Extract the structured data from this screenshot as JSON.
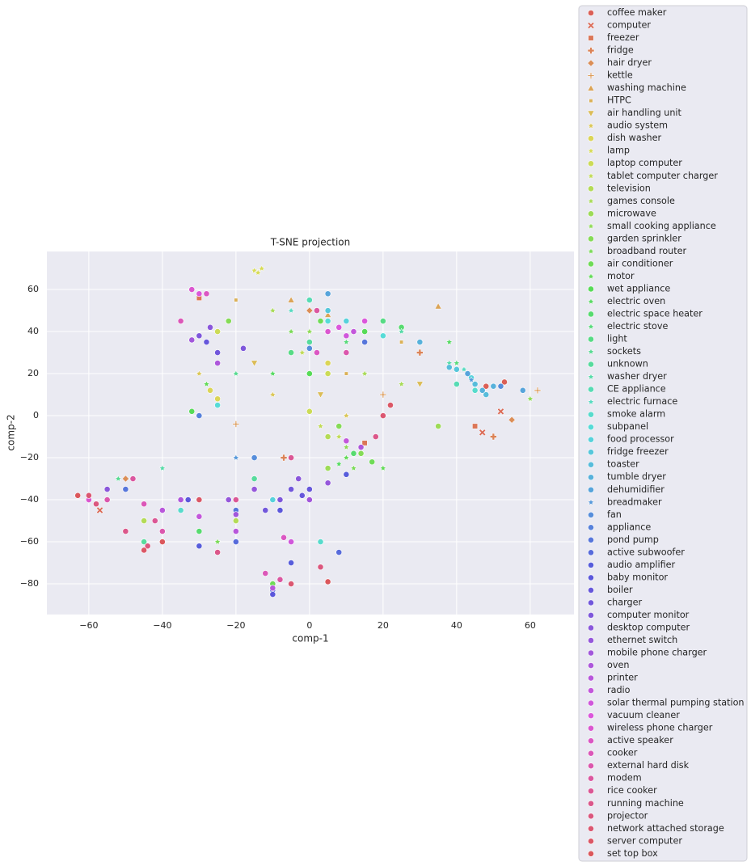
{
  "chart_data": {
    "type": "scatter",
    "title": "T-SNE projection",
    "xlabel": "comp-1",
    "ylabel": "comp-2",
    "xlim": [
      -71.4,
      71.9
    ],
    "ylim": [
      -94.6,
      78.1
    ],
    "xticks": [
      {
        "value": -60,
        "label": "−60"
      },
      {
        "value": -40,
        "label": "−40"
      },
      {
        "value": -20,
        "label": "−20"
      },
      0,
      20,
      40,
      60
    ],
    "yticks": [
      {
        "value": -80,
        "label": "−80"
      },
      {
        "value": -60,
        "label": "−60"
      },
      {
        "value": -40,
        "label": "−40"
      },
      {
        "value": -20,
        "label": "−20"
      },
      0,
      20,
      40,
      60
    ],
    "grid": true,
    "legend": "outside right",
    "series": [
      {
        "name": "coffee maker",
        "color": "hsl(4,65%,60%)",
        "marker": "o",
        "x": [
          48,
          53,
          5
        ],
        "y": [
          14,
          16,
          -79
        ]
      },
      {
        "name": "computer",
        "color": "hsl(9,65%,60%)",
        "marker": "X",
        "x": [
          52,
          47,
          -57
        ],
        "y": [
          2,
          -8,
          -45
        ]
      },
      {
        "name": "freezer",
        "color": "hsl(14,65%,60%)",
        "marker": "s",
        "x": [
          45,
          -30,
          15
        ],
        "y": [
          -5,
          56,
          -13
        ]
      },
      {
        "name": "fridge",
        "color": "hsl(20,65%,60%)",
        "marker": "P",
        "x": [
          50,
          30,
          -7
        ],
        "y": [
          -10,
          30,
          -20
        ]
      },
      {
        "name": "hair dryer",
        "color": "hsl(25,65%,60%)",
        "marker": "D",
        "x": [
          55,
          0,
          -50
        ],
        "y": [
          -2,
          50,
          -30
        ]
      },
      {
        "name": "kettle",
        "color": "hsl(30,65%,60%)",
        "marker": "+",
        "x": [
          20,
          -20,
          62
        ],
        "y": [
          10,
          -4,
          12
        ]
      },
      {
        "name": "washing machine",
        "color": "hsl(35,65%,60%)",
        "marker": "^",
        "x": [
          35,
          -5,
          5
        ],
        "y": [
          52,
          55,
          48
        ]
      },
      {
        "name": "HTPC",
        "color": "hsl(41,65%,60%)",
        "marker": "x",
        "x": [
          25,
          -20,
          10
        ],
        "y": [
          35,
          55,
          20
        ]
      },
      {
        "name": "air handling unit",
        "color": "hsl(46,65%,60%)",
        "marker": "v",
        "x": [
          30,
          -15,
          3
        ],
        "y": [
          15,
          25,
          10
        ]
      },
      {
        "name": "audio system",
        "color": "hsl(51,65%,60%)",
        "marker": "*",
        "x": [
          -10,
          -30,
          10
        ],
        "y": [
          10,
          20,
          0
        ]
      },
      {
        "name": "dish washer",
        "color": "hsl(57,65%,60%)",
        "marker": "o",
        "x": [
          -27,
          -25,
          5
        ],
        "y": [
          12,
          8,
          25
        ]
      },
      {
        "name": "lamp",
        "color": "hsl(62,65%,60%)",
        "marker": "*",
        "x": [
          -15,
          -14,
          -13
        ],
        "y": [
          69,
          68,
          70
        ]
      },
      {
        "name": "laptop computer",
        "color": "hsl(67,65%,60%)",
        "marker": "o",
        "x": [
          0,
          5,
          -25
        ],
        "y": [
          2,
          20,
          40
        ]
      },
      {
        "name": "tablet computer charger",
        "color": "hsl(72,65%,60%)",
        "marker": "*",
        "x": [
          3,
          -2,
          8
        ],
        "y": [
          -5,
          30,
          -10
        ]
      },
      {
        "name": "television",
        "color": "hsl(78,65%,60%)",
        "marker": "o",
        "x": [
          5,
          -20,
          -45
        ],
        "y": [
          -10,
          -50,
          -50
        ]
      },
      {
        "name": "games console",
        "color": "hsl(83,65%,60%)",
        "marker": "*",
        "x": [
          15,
          25,
          -10
        ],
        "y": [
          20,
          15,
          50
        ]
      },
      {
        "name": "microwave",
        "color": "hsl(88,65%,60%)",
        "marker": "o",
        "x": [
          35,
          -10,
          5
        ],
        "y": [
          -5,
          -40,
          -25
        ]
      },
      {
        "name": "small cooking appliance",
        "color": "hsl(94,65%,60%)",
        "marker": "*",
        "x": [
          10,
          60,
          0
        ],
        "y": [
          -15,
          8,
          40
        ]
      },
      {
        "name": "garden sprinkler",
        "color": "hsl(99,65%,60%)",
        "marker": "o",
        "x": [
          14,
          -22,
          8
        ],
        "y": [
          -18,
          45,
          -5
        ]
      },
      {
        "name": "broadband router",
        "color": "hsl(104,65%,60%)",
        "marker": "*",
        "x": [
          12,
          -5,
          -25
        ],
        "y": [
          -25,
          40,
          -60
        ]
      },
      {
        "name": "air conditioner",
        "color": "hsl(109,65%,60%)",
        "marker": "o",
        "x": [
          17,
          3,
          -10
        ],
        "y": [
          -22,
          45,
          -80
        ]
      },
      {
        "name": "motor",
        "color": "hsl(115,65%,60%)",
        "marker": "*",
        "x": [
          10,
          -28,
          20
        ],
        "y": [
          -20,
          15,
          -25
        ]
      },
      {
        "name": "wet appliance",
        "color": "hsl(120,65%,60%)",
        "marker": "o",
        "x": [
          -32,
          15,
          0
        ],
        "y": [
          2,
          40,
          20
        ]
      },
      {
        "name": "electric oven",
        "color": "hsl(125,65%,60%)",
        "marker": "*",
        "x": [
          8,
          -10,
          38
        ],
        "y": [
          -23,
          20,
          35
        ]
      },
      {
        "name": "electric space heater",
        "color": "hsl(131,65%,60%)",
        "marker": "o",
        "x": [
          12,
          -30,
          25
        ],
        "y": [
          -18,
          -55,
          42
        ]
      },
      {
        "name": "electric stove",
        "color": "hsl(136,65%,60%)",
        "marker": "*",
        "x": [
          -15,
          10,
          40
        ],
        "y": [
          -20,
          35,
          25
        ]
      },
      {
        "name": "light",
        "color": "hsl(141,65%,60%)",
        "marker": "o",
        "x": [
          -5,
          -35,
          20
        ],
        "y": [
          30,
          -40,
          45
        ]
      },
      {
        "name": "sockets",
        "color": "hsl(147,65%,60%)",
        "marker": "*",
        "x": [
          -20,
          30,
          -52
        ],
        "y": [
          20,
          35,
          -30
        ]
      },
      {
        "name": "unknown",
        "color": "hsl(152,65%,60%)",
        "marker": "o",
        "x": [
          -15,
          0,
          -45
        ],
        "y": [
          -30,
          35,
          -60
        ]
      },
      {
        "name": "washer dryer",
        "color": "hsl(157,65%,60%)",
        "marker": "*",
        "x": [
          25,
          -40,
          38
        ],
        "y": [
          40,
          -25,
          25
        ]
      },
      {
        "name": "CE appliance",
        "color": "hsl(162,65%,60%)",
        "marker": "o",
        "x": [
          40,
          0,
          10
        ],
        "y": [
          15,
          55,
          30
        ]
      },
      {
        "name": "electric furnace",
        "color": "hsl(168,65%,60%)",
        "marker": "*",
        "x": [
          42,
          -30,
          -5
        ],
        "y": [
          22,
          -40,
          50
        ]
      },
      {
        "name": "smoke alarm",
        "color": "hsl(173,65%,60%)",
        "marker": "o",
        "x": [
          -35,
          45,
          3
        ],
        "y": [
          -45,
          12,
          -60
        ]
      },
      {
        "name": "subpanel",
        "color": "hsl(178,65%,60%)",
        "marker": "o",
        "x": [
          20,
          -25,
          5
        ],
        "y": [
          38,
          5,
          45
        ]
      },
      {
        "name": "food processor",
        "color": "hsl(184,65%,60%)",
        "marker": "o",
        "x": [
          10,
          -10,
          44
        ],
        "y": [
          45,
          -40,
          18
        ]
      },
      {
        "name": "fridge freezer",
        "color": "hsl(189,65%,60%)",
        "marker": "o",
        "x": [
          40,
          5,
          -20
        ],
        "y": [
          22,
          50,
          -60
        ]
      },
      {
        "name": "toaster",
        "color": "hsl(194,65%,60%)",
        "marker": "o",
        "x": [
          45,
          48,
          38
        ],
        "y": [
          15,
          10,
          23
        ]
      },
      {
        "name": "tumble dryer",
        "color": "hsl(199,65%,60%)",
        "marker": "o",
        "x": [
          47,
          50,
          30
        ],
        "y": [
          12,
          14,
          35
        ]
      },
      {
        "name": "dehumidifier",
        "color": "hsl(205,65%,60%)",
        "marker": "o",
        "x": [
          58,
          43,
          5
        ],
        "y": [
          12,
          20,
          58
        ]
      },
      {
        "name": "breadmaker",
        "color": "hsl(210,65%,60%)",
        "marker": "*",
        "x": [
          -20,
          44,
          10
        ],
        "y": [
          -20,
          17,
          30
        ]
      },
      {
        "name": "fan",
        "color": "hsl(215,65%,60%)",
        "marker": "o",
        "x": [
          -15,
          0,
          52
        ],
        "y": [
          -20,
          32,
          14
        ]
      },
      {
        "name": "appliance",
        "color": "hsl(221,65%,60%)",
        "marker": "o",
        "x": [
          -40,
          5,
          -30
        ],
        "y": [
          -55,
          40,
          0
        ]
      },
      {
        "name": "pond pump",
        "color": "hsl(226,65%,60%)",
        "marker": "o",
        "x": [
          -50,
          -20,
          15
        ],
        "y": [
          -35,
          -45,
          35
        ]
      },
      {
        "name": "active subwoofer",
        "color": "hsl(231,65%,60%)",
        "marker": "o",
        "x": [
          -20,
          -10,
          8
        ],
        "y": [
          -60,
          -83,
          -65
        ]
      },
      {
        "name": "audio amplifier",
        "color": "hsl(237,65%,60%)",
        "marker": "o",
        "x": [
          -5,
          -30,
          10
        ],
        "y": [
          -70,
          -62,
          -28
        ]
      },
      {
        "name": "baby monitor",
        "color": "hsl(242,65%,60%)",
        "marker": "o",
        "x": [
          -10,
          -33,
          -8
        ],
        "y": [
          -85,
          -40,
          -45
        ]
      },
      {
        "name": "boiler",
        "color": "hsl(247,65%,60%)",
        "marker": "o",
        "x": [
          -2,
          -28,
          0
        ],
        "y": [
          -38,
          35,
          -35
        ]
      },
      {
        "name": "charger",
        "color": "hsl(252,65%,60%)",
        "marker": "o",
        "x": [
          -5,
          -25,
          -12
        ],
        "y": [
          -35,
          30,
          -45
        ]
      },
      {
        "name": "computer monitor",
        "color": "hsl(258,65%,60%)",
        "marker": "o",
        "x": [
          -30,
          -18,
          -8
        ],
        "y": [
          38,
          32,
          -40
        ]
      },
      {
        "name": "desktop computer",
        "color": "hsl(263,65%,60%)",
        "marker": "o",
        "x": [
          -27,
          -3,
          -55
        ],
        "y": [
          42,
          -30,
          -35
        ]
      },
      {
        "name": "ethernet switch",
        "color": "hsl(268,65%,60%)",
        "marker": "o",
        "x": [
          -22,
          -15,
          5
        ],
        "y": [
          -40,
          -35,
          -32
        ]
      },
      {
        "name": "mobile phone charger",
        "color": "hsl(274,65%,60%)",
        "marker": "o",
        "x": [
          -32,
          -20,
          0
        ],
        "y": [
          36,
          -47,
          -40
        ]
      },
      {
        "name": "oven",
        "color": "hsl(279,65%,60%)",
        "marker": "o",
        "x": [
          -25,
          -35,
          14
        ],
        "y": [
          25,
          -40,
          -15
        ]
      },
      {
        "name": "printer",
        "color": "hsl(284,65%,60%)",
        "marker": "o",
        "x": [
          -40,
          -20,
          -10
        ],
        "y": [
          -45,
          -55,
          -82
        ]
      },
      {
        "name": "radio",
        "color": "hsl(289,65%,60%)",
        "marker": "o",
        "x": [
          12,
          -30,
          10
        ],
        "y": [
          40,
          -48,
          -12
        ]
      },
      {
        "name": "solar thermal pumping station",
        "color": "hsl(295,65%,60%)",
        "marker": "o",
        "x": [
          10,
          -5,
          -25
        ],
        "y": [
          38,
          -60,
          -65
        ]
      },
      {
        "name": "vacuum cleaner",
        "color": "hsl(300,65%,60%)",
        "marker": "o",
        "x": [
          8,
          -30,
          15
        ],
        "y": [
          42,
          58,
          45
        ]
      },
      {
        "name": "wireless phone charger",
        "color": "hsl(305,65%,60%)",
        "marker": "o",
        "x": [
          -32,
          -60,
          5
        ],
        "y": [
          60,
          -40,
          40
        ]
      },
      {
        "name": "active speaker",
        "color": "hsl(311,65%,60%)",
        "marker": "o",
        "x": [
          -28,
          -7,
          2
        ],
        "y": [
          58,
          -58,
          30
        ]
      },
      {
        "name": "cooker",
        "color": "hsl(316,65%,60%)",
        "marker": "o",
        "x": [
          -35,
          -45,
          -12
        ],
        "y": [
          45,
          -42,
          -75
        ]
      },
      {
        "name": "external hard disk",
        "color": "hsl(321,65%,60%)",
        "marker": "o",
        "x": [
          -55,
          -40,
          10
        ],
        "y": [
          -40,
          -55,
          30
        ]
      },
      {
        "name": "modem",
        "color": "hsl(327,65%,60%)",
        "marker": "o",
        "x": [
          -48,
          -8,
          2
        ],
        "y": [
          -30,
          -78,
          50
        ]
      },
      {
        "name": "rice cooker",
        "color": "hsl(332,65%,60%)",
        "marker": "o",
        "x": [
          -42,
          -20,
          -5
        ],
        "y": [
          -50,
          -40,
          -20
        ]
      },
      {
        "name": "running machine",
        "color": "hsl(337,65%,60%)",
        "marker": "o",
        "x": [
          -50,
          -25,
          18
        ],
        "y": [
          -55,
          -65,
          -10
        ]
      },
      {
        "name": "projector",
        "color": "hsl(342,65%,60%)",
        "marker": "o",
        "x": [
          -58,
          -44,
          3
        ],
        "y": [
          -42,
          -62,
          -72
        ]
      },
      {
        "name": "network attached storage",
        "color": "hsl(348,65%,60%)",
        "marker": "o",
        "x": [
          -60,
          -5,
          20
        ],
        "y": [
          -38,
          -80,
          0
        ]
      },
      {
        "name": "server computer",
        "color": "hsl(353,65%,60%)",
        "marker": "o",
        "x": [
          -30,
          22,
          -45
        ],
        "y": [
          -40,
          5,
          -64
        ]
      },
      {
        "name": "set top box",
        "color": "hsl(358,65%,60%)",
        "marker": "o",
        "x": [
          -63,
          5,
          -40
        ],
        "y": [
          -38,
          -79,
          -60
        ]
      }
    ]
  }
}
